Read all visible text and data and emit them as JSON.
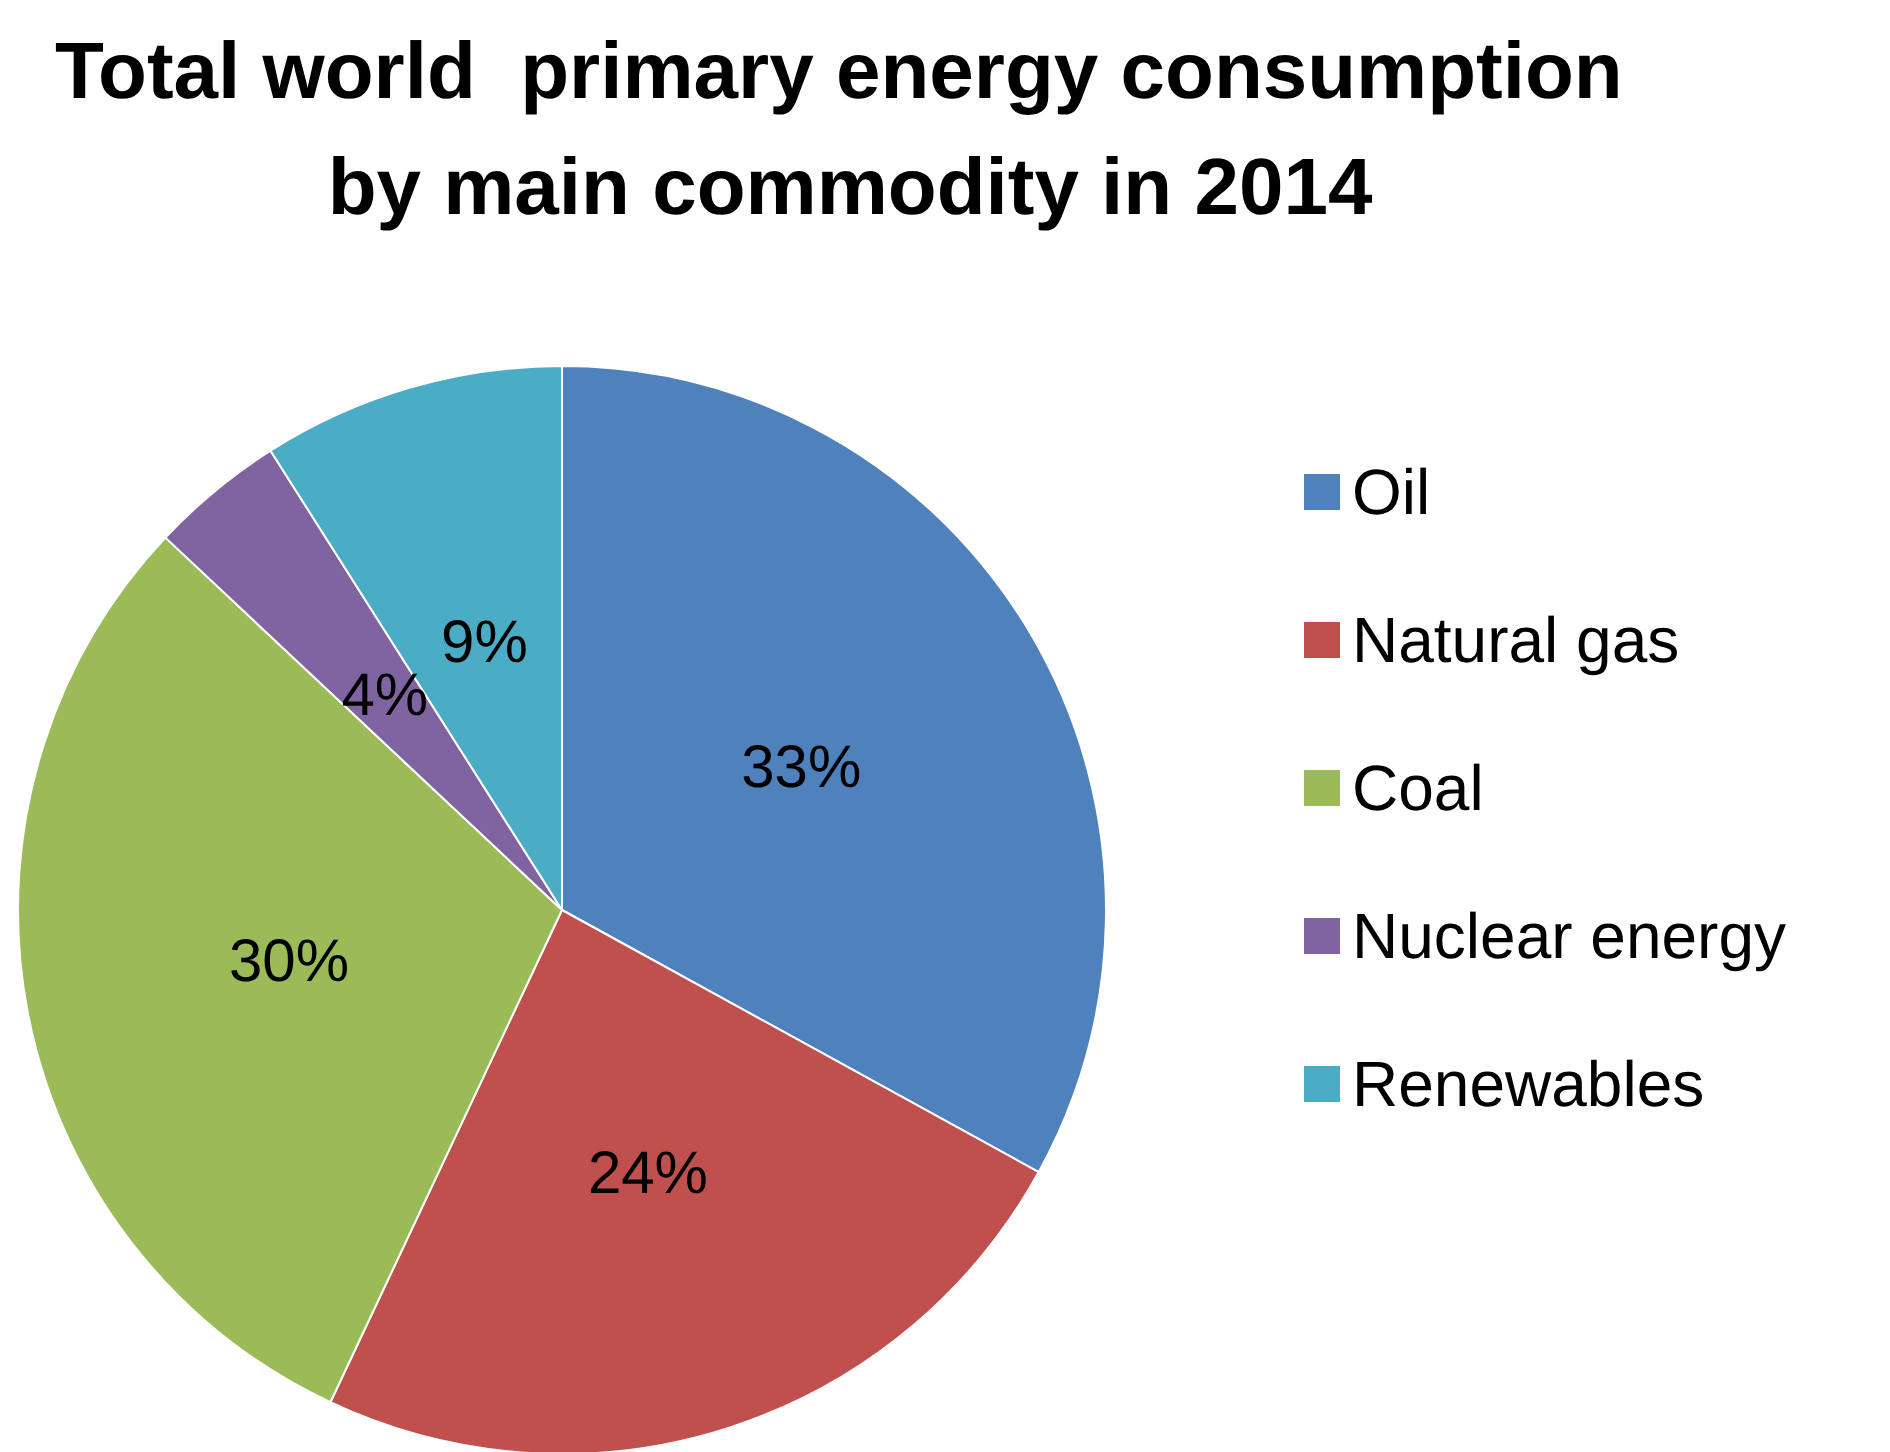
{
  "chart_data": {
    "type": "pie",
    "title": "Total world  primary energy consumption by main commodity in 2014",
    "categories": [
      "Oil",
      "Natural gas",
      "Coal",
      "Nuclear energy",
      "Renewables"
    ],
    "values": [
      33,
      24,
      30,
      4,
      9
    ],
    "colors": [
      "#4f81bd",
      "#c0504d",
      "#9bbb59",
      "#8064a2",
      "#4bacc6"
    ],
    "value_labels": [
      "33%",
      "24%",
      "30%",
      "4%",
      "9%"
    ],
    "legend": "right"
  }
}
